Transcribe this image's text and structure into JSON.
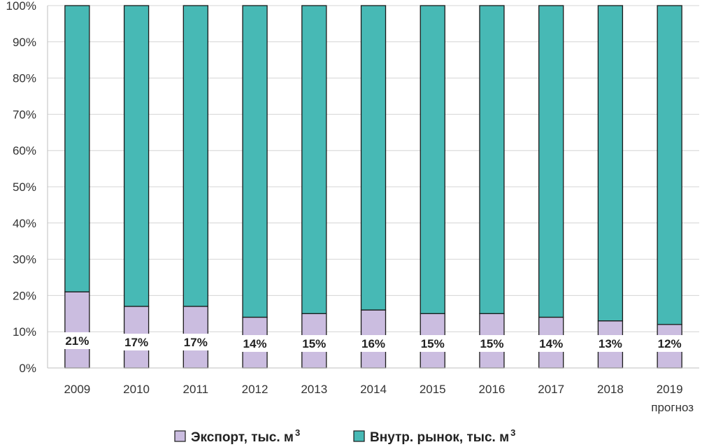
{
  "chart_data": {
    "type": "bar",
    "stacked": "percent",
    "categories": [
      "2009",
      "2010",
      "2011",
      "2012",
      "2013",
      "2014",
      "2015",
      "2016",
      "2017",
      "2018",
      "2019"
    ],
    "category_sublabels": {
      "2019": "прогноз"
    },
    "series": [
      {
        "name": "Экспорт, тыс. м",
        "unit_superscript": "3",
        "values": [
          21,
          17,
          17,
          14,
          15,
          16,
          15,
          15,
          14,
          13,
          12
        ],
        "labels": [
          "21%",
          "17%",
          "17%",
          "14%",
          "15%",
          "16%",
          "15%",
          "15%",
          "14%",
          "13%",
          "12%"
        ],
        "color": "#cbbde0"
      },
      {
        "name": "Внутр. рынок, тыс. м",
        "unit_superscript": "3",
        "values": [
          79,
          83,
          83,
          86,
          85,
          84,
          85,
          85,
          86,
          87,
          88
        ],
        "color": "#47b9b5"
      }
    ],
    "ylim": [
      0,
      100
    ],
    "yticks": [
      "0%",
      "10%",
      "20%",
      "30%",
      "40%",
      "50%",
      "60%",
      "70%",
      "80%",
      "90%",
      "100%"
    ],
    "grid": true,
    "legend": "bottom"
  }
}
